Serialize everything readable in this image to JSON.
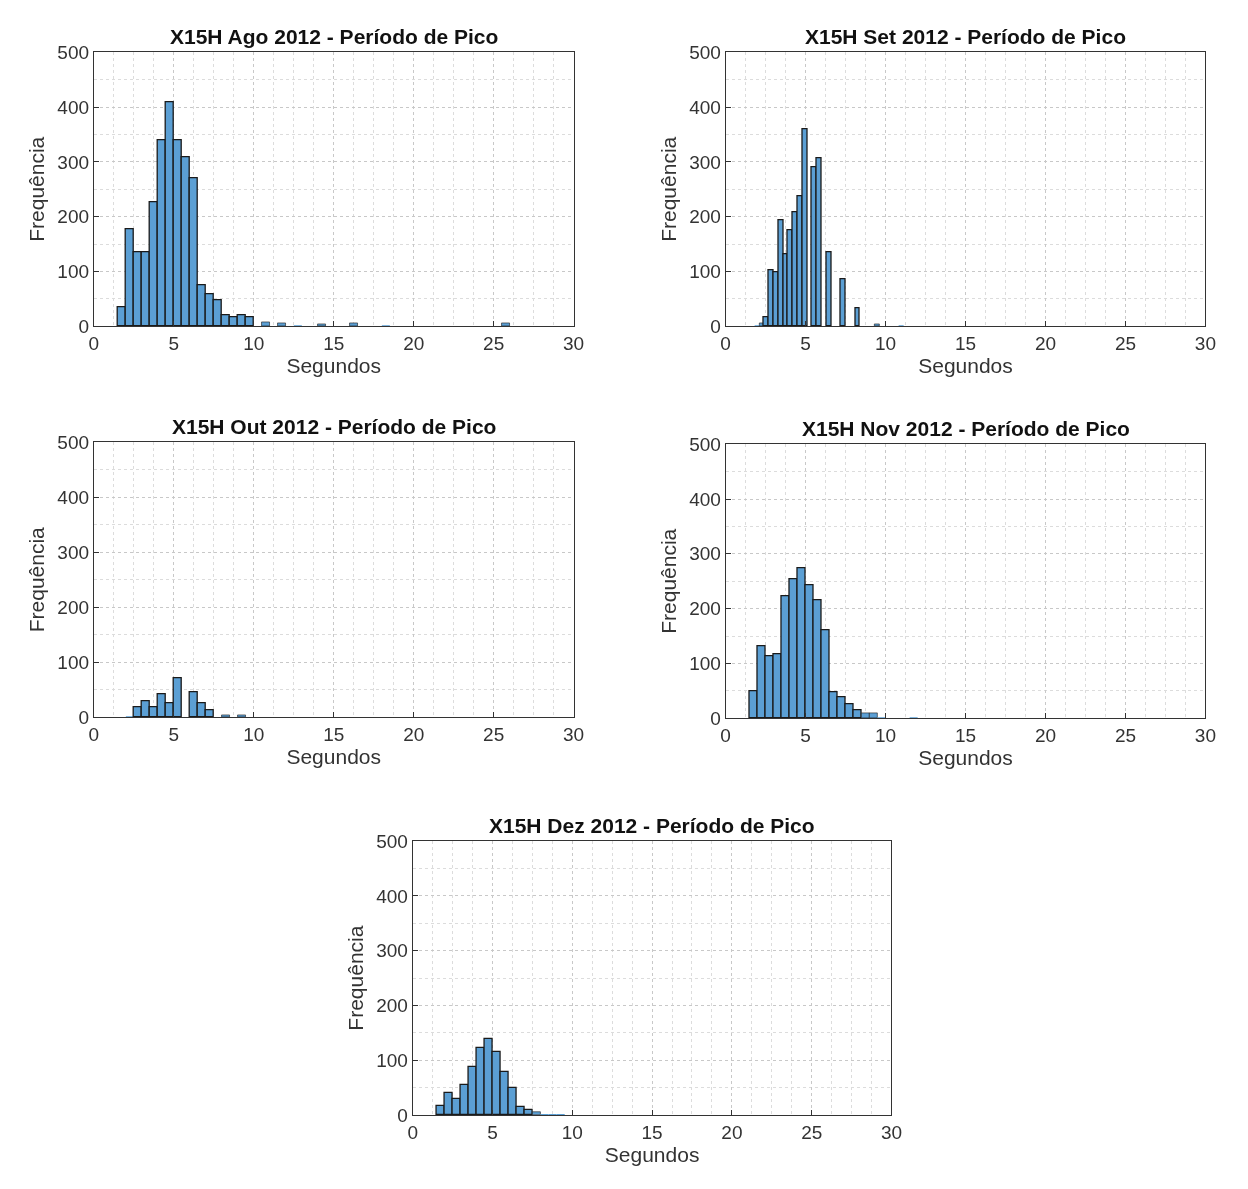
{
  "chart_data": [
    {
      "type": "histogram",
      "title": "X15H Ago 2012 - Período de Pico",
      "xlabel": "Segundos",
      "ylabel": "Frequência",
      "color": "#5b9fd4",
      "xlim": [
        0,
        30
      ],
      "xticks": [
        0,
        5,
        10,
        15,
        20,
        25,
        30
      ],
      "ylim": [
        0,
        500
      ],
      "yticks": [
        0,
        100,
        200,
        300,
        400,
        500
      ],
      "grid": true,
      "bins": [
        1.5,
        2,
        2.5,
        3,
        3.5,
        4,
        4.5,
        5,
        5.5,
        6,
        6.5,
        7,
        7.5,
        8,
        8.5,
        9,
        9.5,
        10,
        10.5,
        11,
        11.5,
        12,
        12.5,
        13,
        13.5,
        14,
        14.5,
        15,
        15.5,
        16,
        16.5,
        17,
        17.5,
        18,
        18.5,
        19,
        19.5,
        20,
        20.5,
        21,
        21.5,
        22,
        22.5,
        23,
        23.5,
        24,
        24.5,
        25,
        25.5,
        26
      ],
      "values": [
        35,
        178,
        135,
        135,
        226,
        340,
        409,
        340,
        308,
        271,
        75,
        59,
        48,
        21,
        17,
        20,
        16,
        0,
        8,
        0,
        6,
        0,
        2,
        0,
        0,
        4,
        0,
        0,
        0,
        5,
        0,
        0,
        0,
        2,
        0,
        0,
        0,
        0,
        0,
        0,
        0,
        0,
        0,
        0,
        0,
        0,
        0,
        0,
        5
      ]
    },
    {
      "type": "histogram",
      "title": "X15H Set 2012 - Período de Pico",
      "xlabel": "Segundos",
      "ylabel": "Frequência",
      "color": "#5b9fd4",
      "xlim": [
        0,
        30
      ],
      "xticks": [
        0,
        5,
        10,
        15,
        20,
        25,
        30
      ],
      "ylim": [
        0,
        500
      ],
      "yticks": [
        0,
        100,
        200,
        300,
        400,
        500
      ],
      "grid": true,
      "bins": [
        1.8,
        2.1,
        2.4,
        2.7,
        3.0,
        3.3,
        3.6,
        3.9,
        4.2,
        4.5,
        4.8,
        5.1,
        5.4,
        5.7,
        6.0,
        6.3,
        6.6,
        6.9,
        7.2,
        7.5,
        7.8,
        8.1,
        8.4,
        8.7,
        9.0,
        9.3,
        9.6,
        9.9,
        10.2,
        10.5,
        10.8,
        11.1
      ],
      "values": [
        2,
        5,
        17,
        102,
        99,
        194,
        131,
        176,
        208,
        237,
        359,
        0,
        290,
        306,
        0,
        136,
        0,
        0,
        85,
        0,
        0,
        33,
        0,
        0,
        0,
        4,
        0,
        0,
        0,
        0,
        1
      ]
    },
    {
      "type": "histogram",
      "title": "X15H Out 2012 - Período de Pico",
      "xlabel": "Segundos",
      "ylabel": "Frequência",
      "color": "#5b9fd4",
      "xlim": [
        0,
        30
      ],
      "xticks": [
        0,
        5,
        10,
        15,
        20,
        25,
        30
      ],
      "ylim": [
        0,
        500
      ],
      "yticks": [
        0,
        100,
        200,
        300,
        400,
        500
      ],
      "grid": true,
      "bins": [
        1.5,
        2,
        2.5,
        3,
        3.5,
        4,
        4.5,
        5,
        5.5,
        6,
        6.5,
        7,
        7.5,
        8,
        8.5,
        9,
        9.5
      ],
      "values": [
        0,
        1,
        18,
        29,
        18,
        42,
        26,
        71,
        0,
        45,
        26,
        12,
        0,
        4,
        0,
        4
      ]
    },
    {
      "type": "histogram",
      "title": "X15H Nov 2012 - Período de Pico",
      "xlabel": "Segundos",
      "ylabel": "Frequência",
      "color": "#5b9fd4",
      "xlim": [
        0,
        30
      ],
      "xticks": [
        0,
        5,
        10,
        15,
        20,
        25,
        30
      ],
      "ylim": [
        0,
        500
      ],
      "yticks": [
        0,
        100,
        200,
        300,
        400,
        500
      ],
      "grid": true,
      "bins": [
        1.5,
        2,
        2.5,
        3,
        3.5,
        4,
        4.5,
        5,
        5.5,
        6,
        6.5,
        7,
        7.5,
        8,
        8.5,
        9,
        9.5,
        10,
        10.5,
        11,
        11.5,
        12
      ],
      "values": [
        50,
        131,
        113,
        116,
        222,
        253,
        274,
        242,
        216,
        161,
        47,
        39,
        26,
        15,
        9,
        9,
        1,
        0,
        0,
        0,
        2
      ]
    },
    {
      "type": "histogram",
      "title": "X15H Dez 2012 - Período de Pico",
      "xlabel": "Segundos",
      "ylabel": "Frequência",
      "color": "#5b9fd4",
      "xlim": [
        0,
        30
      ],
      "xticks": [
        0,
        5,
        10,
        15,
        20,
        25,
        30
      ],
      "ylim": [
        0,
        500
      ],
      "yticks": [
        0,
        100,
        200,
        300,
        400,
        500
      ],
      "grid": true,
      "bins": [
        1.5,
        2,
        2.5,
        3,
        3.5,
        4,
        4.5,
        5,
        5.5,
        6,
        6.5,
        7,
        7.5,
        8,
        8.5,
        9,
        9.5
      ],
      "values": [
        17,
        41,
        30,
        54,
        88,
        122,
        139,
        115,
        78,
        49,
        14,
        10,
        5,
        2,
        1,
        1
      ]
    }
  ]
}
